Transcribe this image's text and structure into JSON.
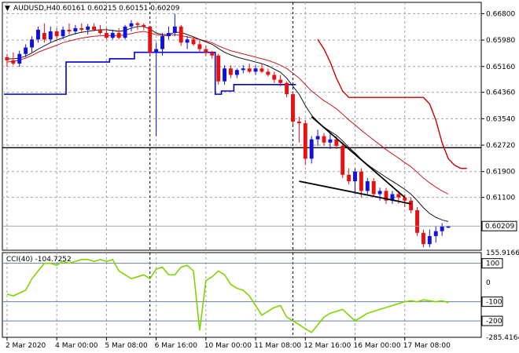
{
  "header": {
    "symbol_label": "AUDUSD,H4",
    "ohlc_label": "0.60161 0.60215 0.60151 0.60209",
    "cci_label": "CCI(40) -104.7252"
  },
  "chart_data": [
    {
      "type": "candlestick",
      "title": "AUDUSD,H4",
      "y_ticks": [
        "0.66800",
        "0.65980",
        "0.65160",
        "0.64360",
        "0.63540",
        "0.62720",
        "0.61900",
        "0.61100"
      ],
      "ylim": [
        0.5946,
        0.6715
      ],
      "last_price": "0.60209",
      "x_labels": [
        "2 Mar 2020",
        "4 Mar 00:00",
        "5 Mar 08:00",
        "6 Mar 16:00",
        "10 Mar 00:00",
        "11 Mar 08:00",
        "12 Mar 16:00",
        "16 Mar 00:00",
        "17 Mar 08:00"
      ],
      "horizontal_level": 0.6264,
      "candles": [
        [
          0.6545,
          0.6555,
          0.6515,
          0.6535
        ],
        [
          0.6535,
          0.656,
          0.652,
          0.6525
        ],
        [
          0.6525,
          0.6565,
          0.6515,
          0.6555
        ],
        [
          0.6555,
          0.6585,
          0.6545,
          0.6575
        ],
        [
          0.6575,
          0.661,
          0.656,
          0.66
        ],
        [
          0.66,
          0.664,
          0.659,
          0.663
        ],
        [
          0.662,
          0.665,
          0.659,
          0.66
        ],
        [
          0.66,
          0.664,
          0.659,
          0.6625
        ],
        [
          0.6625,
          0.6635,
          0.66,
          0.661
        ],
        [
          0.661,
          0.664,
          0.66,
          0.663
        ],
        [
          0.663,
          0.665,
          0.6615,
          0.6625
        ],
        [
          0.6625,
          0.6645,
          0.6615,
          0.6635
        ],
        [
          0.6635,
          0.665,
          0.662,
          0.663
        ],
        [
          0.663,
          0.6648,
          0.6615,
          0.664
        ],
        [
          0.664,
          0.665,
          0.6625,
          0.663
        ],
        [
          0.663,
          0.6645,
          0.6615,
          0.662
        ],
        [
          0.662,
          0.6635,
          0.66,
          0.6605
        ],
        [
          0.6605,
          0.663,
          0.66,
          0.662
        ],
        [
          0.662,
          0.6635,
          0.66,
          0.6605
        ],
        [
          0.6605,
          0.6645,
          0.66,
          0.664
        ],
        [
          0.664,
          0.666,
          0.6625,
          0.665
        ],
        [
          0.665,
          0.6655,
          0.663,
          0.6645
        ],
        [
          0.6645,
          0.665,
          0.663,
          0.664
        ],
        [
          0.664,
          0.664,
          0.655,
          0.656
        ],
        [
          0.656,
          0.659,
          0.63,
          0.657
        ],
        [
          0.657,
          0.662,
          0.655,
          0.661
        ],
        [
          0.661,
          0.664,
          0.66,
          0.662
        ],
        [
          0.662,
          0.668,
          0.661,
          0.664
        ],
        [
          0.664,
          0.6645,
          0.658,
          0.659
        ],
        [
          0.659,
          0.661,
          0.657,
          0.66
        ],
        [
          0.66,
          0.661,
          0.658,
          0.6585
        ],
        [
          0.6585,
          0.66,
          0.656,
          0.657
        ],
        [
          0.657,
          0.658,
          0.655,
          0.656
        ],
        [
          0.656,
          0.6565,
          0.654,
          0.655
        ],
        [
          0.655,
          0.6555,
          0.646,
          0.647
        ],
        [
          0.647,
          0.652,
          0.646,
          0.651
        ],
        [
          0.651,
          0.652,
          0.648,
          0.649
        ],
        [
          0.649,
          0.651,
          0.648,
          0.6505
        ],
        [
          0.6505,
          0.652,
          0.6495,
          0.651
        ],
        [
          0.651,
          0.6525,
          0.6495,
          0.65
        ],
        [
          0.65,
          0.652,
          0.649,
          0.651
        ],
        [
          0.651,
          0.6525,
          0.6495,
          0.65
        ],
        [
          0.65,
          0.651,
          0.6485,
          0.649
        ],
        [
          0.649,
          0.65,
          0.6465,
          0.6475
        ],
        [
          0.6475,
          0.649,
          0.6455,
          0.6465
        ],
        [
          0.6465,
          0.647,
          0.642,
          0.643
        ],
        [
          0.643,
          0.644,
          0.6335,
          0.6345
        ],
        [
          0.6345,
          0.636,
          0.628,
          0.634
        ],
        [
          0.634,
          0.635,
          0.621,
          0.623
        ],
        [
          0.623,
          0.63,
          0.6215,
          0.629
        ],
        [
          0.629,
          0.632,
          0.627,
          0.63
        ],
        [
          0.63,
          0.631,
          0.627,
          0.628
        ],
        [
          0.628,
          0.631,
          0.626,
          0.629
        ],
        [
          0.629,
          0.63,
          0.626,
          0.627
        ],
        [
          0.627,
          0.628,
          0.617,
          0.618
        ],
        [
          0.618,
          0.62,
          0.615,
          0.616
        ],
        [
          0.616,
          0.62,
          0.612,
          0.619
        ],
        [
          0.619,
          0.62,
          0.611,
          0.613
        ],
        [
          0.613,
          0.617,
          0.612,
          0.616
        ],
        [
          0.616,
          0.617,
          0.611,
          0.612
        ],
        [
          0.612,
          0.614,
          0.61,
          0.613
        ],
        [
          0.613,
          0.614,
          0.609,
          0.61
        ],
        [
          0.61,
          0.613,
          0.609,
          0.612
        ],
        [
          0.612,
          0.613,
          0.609,
          0.611
        ],
        [
          0.611,
          0.612,
          0.608,
          0.61
        ],
        [
          0.61,
          0.611,
          0.606,
          0.607
        ],
        [
          0.607,
          0.608,
          0.599,
          0.6
        ],
        [
          0.6,
          0.601,
          0.5955,
          0.5965
        ],
        [
          0.5965,
          0.601,
          0.5955,
          0.599
        ],
        [
          0.599,
          0.602,
          0.597,
          0.6005
        ],
        [
          0.6005,
          0.603,
          0.599,
          0.602
        ],
        [
          0.6016,
          0.6022,
          0.6015,
          0.6021
        ]
      ],
      "lines": [
        {
          "name": "",
          "color": "#cc0000",
          "values": [
            0.653,
            0.6532,
            0.6536,
            0.6542,
            0.655,
            0.656,
            0.6568,
            0.6575,
            0.6582,
            0.659,
            0.6595,
            0.66,
            0.6604,
            0.6607,
            0.661,
            0.6611,
            0.6612,
            0.6612,
            0.6612,
            0.6614,
            0.6618,
            0.6622,
            0.6625,
            0.662,
            0.6615,
            0.6612,
            0.6612,
            0.6615,
            0.6612,
            0.6608,
            0.6604,
            0.66,
            0.6595,
            0.659,
            0.658,
            0.6572,
            0.6565,
            0.656,
            0.6555,
            0.655,
            0.6545,
            0.654,
            0.6535,
            0.6528,
            0.652,
            0.651,
            0.6495,
            0.648,
            0.646,
            0.644,
            0.6425,
            0.641,
            0.6398,
            0.6385,
            0.6368,
            0.635,
            0.6335,
            0.6318,
            0.6303,
            0.6288,
            0.6273,
            0.6258,
            0.6245,
            0.6232,
            0.6218,
            0.6205,
            0.6188,
            0.617,
            0.6155,
            0.6142,
            0.613,
            0.612
          ]
        },
        {
          "name": "",
          "color": "#000000",
          "values": [
            0.654,
            0.654,
            0.6542,
            0.6548,
            0.6558,
            0.657,
            0.658,
            0.659,
            0.6598,
            0.6605,
            0.6612,
            0.6618,
            0.6622,
            0.6625,
            0.6628,
            0.663,
            0.663,
            0.6628,
            0.6625,
            0.6628,
            0.6635,
            0.664,
            0.664,
            0.6632,
            0.662,
            0.6615,
            0.6615,
            0.6622,
            0.6622,
            0.6615,
            0.6608,
            0.66,
            0.6592,
            0.6585,
            0.6572,
            0.656,
            0.6552,
            0.6545,
            0.654,
            0.6535,
            0.653,
            0.6525,
            0.6518,
            0.6508,
            0.6498,
            0.648,
            0.6455,
            0.643,
            0.6395,
            0.6365,
            0.6345,
            0.6328,
            0.6315,
            0.6303,
            0.6285,
            0.6265,
            0.6248,
            0.6228,
            0.6212,
            0.6198,
            0.6185,
            0.6172,
            0.616,
            0.6148,
            0.6135,
            0.612,
            0.61,
            0.6078,
            0.606,
            0.6048,
            0.604,
            0.6035
          ]
        }
      ],
      "band_upper": {
        "name": "",
        "color": "#cc0000",
        "start_index": 50,
        "values": [
          0.66,
          0.657,
          0.653,
          0.648,
          0.644,
          0.642,
          0.642,
          0.642,
          0.642,
          0.642,
          0.642,
          0.642,
          0.642,
          0.642,
          0.642,
          0.642,
          0.642,
          0.642,
          0.64,
          0.635,
          0.628,
          0.623,
          0.621,
          0.62,
          0.62
        ]
      },
      "band_lower": {
        "name": "",
        "color": "#0000cc",
        "values": [
          0.643,
          0.643,
          0.643,
          0.643,
          0.643,
          0.643,
          0.643,
          0.643,
          0.643,
          0.643,
          0.653,
          0.653,
          0.653,
          0.653,
          0.653,
          0.653,
          0.653,
          0.654,
          0.654,
          0.654,
          0.654,
          0.656,
          0.656,
          0.656,
          0.656,
          0.656,
          0.656,
          0.656,
          0.656,
          0.656,
          0.656,
          0.656,
          0.656,
          0.656,
          0.643,
          0.644,
          0.644,
          0.646,
          0.646,
          0.646,
          0.646,
          0.646,
          0.646,
          0.646,
          0.646,
          0.646,
          0.646
        ]
      },
      "trendlines": [
        {
          "from": [
            49,
            0.636
          ],
          "to": [
            64,
            0.611
          ],
          "color": "#000000"
        },
        {
          "from": [
            47,
            0.616
          ],
          "to": [
            65,
            0.609
          ],
          "color": "#000000"
        }
      ]
    },
    {
      "type": "line",
      "title": "CCI(40) -104.7252",
      "y_ticks": [
        "155.9166",
        "100",
        "0",
        "-100",
        "-200",
        "-285.4164"
      ],
      "ylim": [
        -285.4164,
        155.9166
      ],
      "levels": [
        100,
        -100,
        -200
      ],
      "series": [
        {
          "name": "CCI(40)",
          "color": "#7fd400",
          "values": [
            -60,
            -70,
            -55,
            -40,
            20,
            60,
            100,
            100,
            90,
            110,
            100,
            110,
            120,
            120,
            110,
            120,
            110,
            120,
            60,
            40,
            20,
            30,
            40,
            20,
            70,
            80,
            40,
            40,
            80,
            90,
            60,
            -250,
            10,
            30,
            60,
            40,
            -10,
            -30,
            -40,
            -70,
            -120,
            -170,
            -150,
            -130,
            -120,
            -180,
            -200,
            -220,
            -240,
            -260,
            -220,
            -180,
            -160,
            -150,
            -140,
            -170,
            -200,
            -180,
            -160,
            -150,
            -140,
            -130,
            -120,
            -110,
            -100,
            -95,
            -100,
            -90,
            -95,
            -100,
            -95,
            -105
          ]
        }
      ]
    }
  ]
}
